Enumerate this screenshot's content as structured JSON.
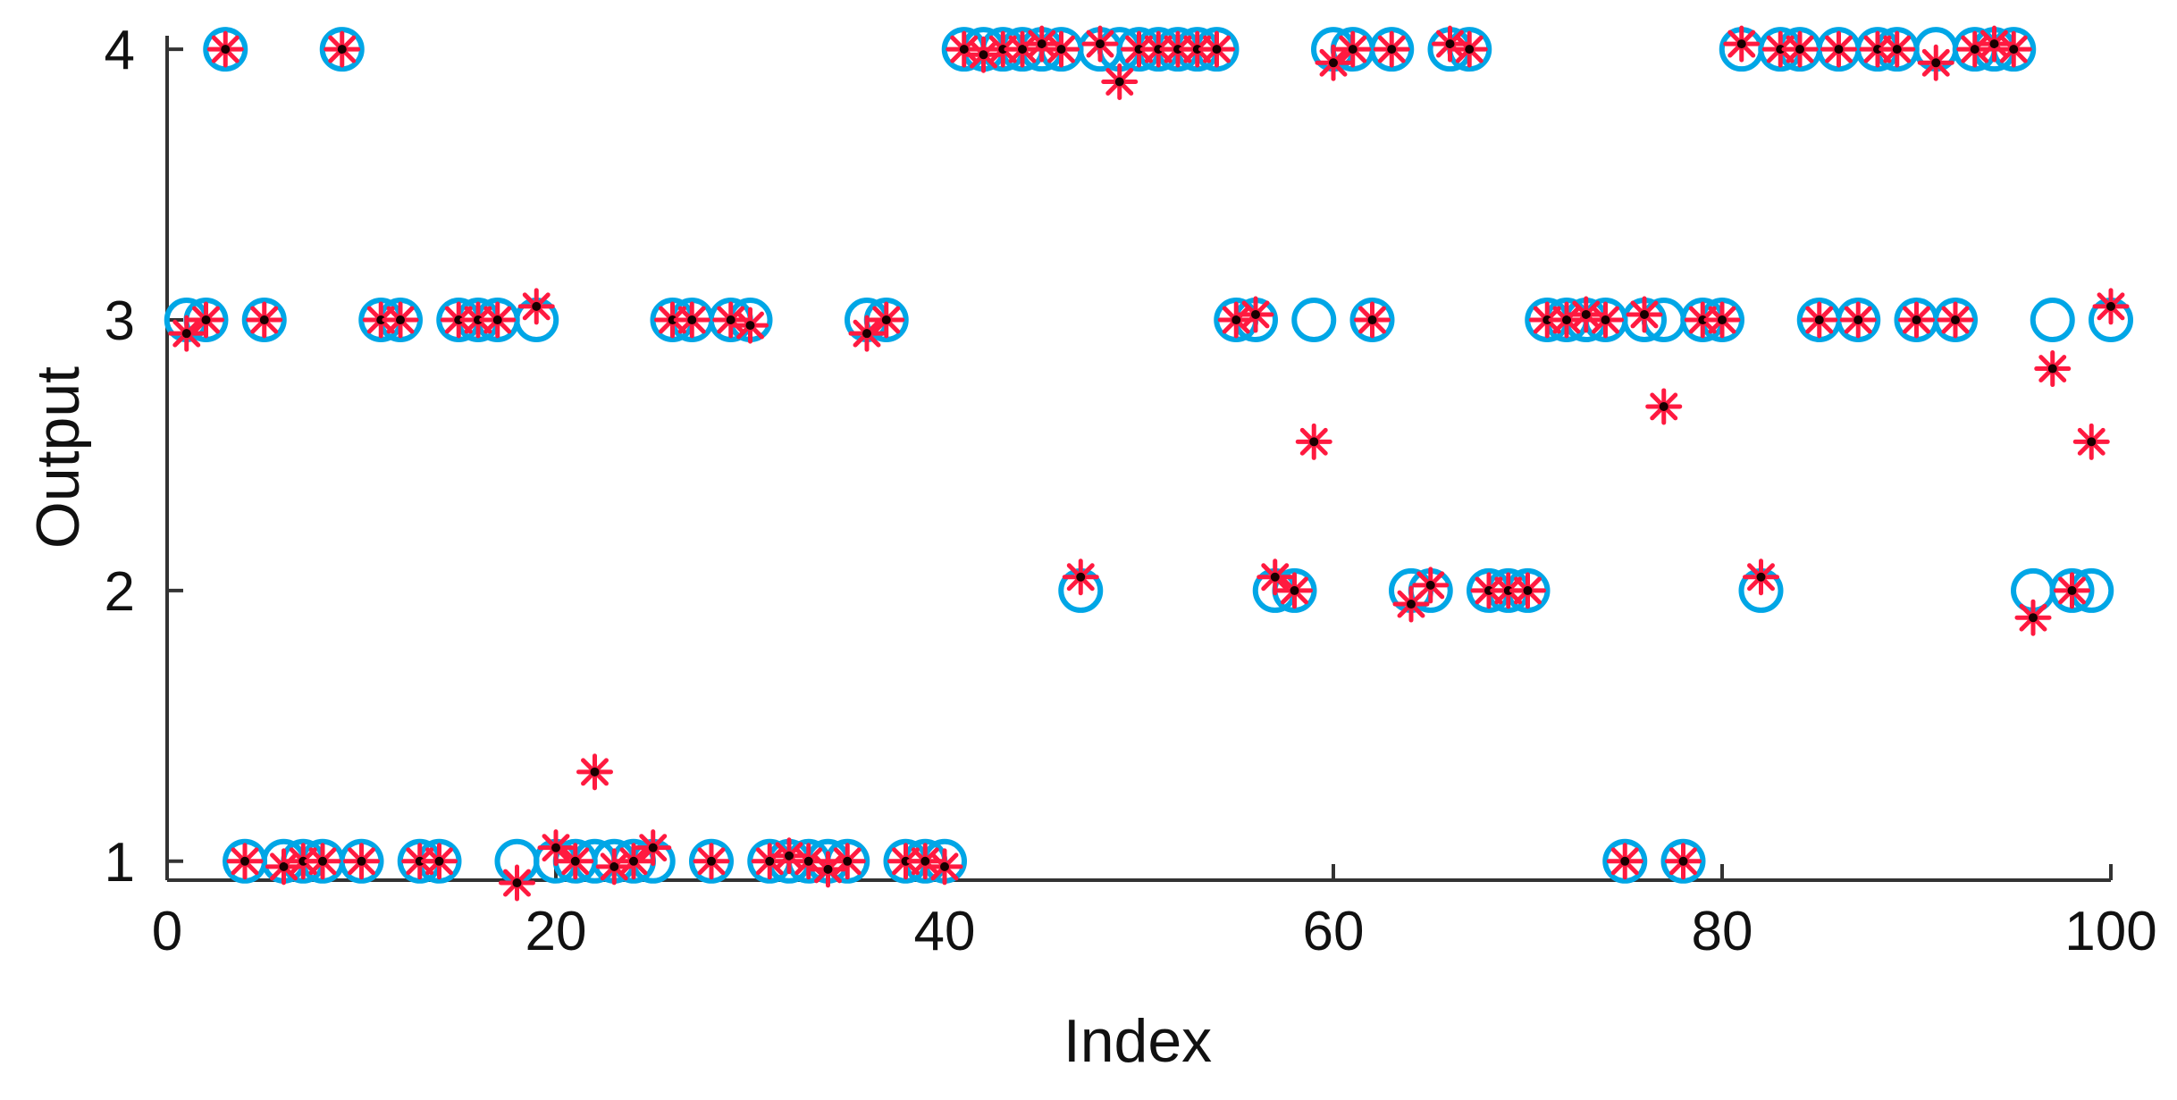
{
  "chart_data": {
    "type": "scatter",
    "xlabel": "Index",
    "ylabel": "Output",
    "xlim": [
      0,
      100
    ],
    "ylim": [
      0.93,
      4.05
    ],
    "xticks": [
      0,
      20,
      40,
      60,
      80,
      100
    ],
    "yticks": [
      1,
      2,
      3,
      4
    ],
    "xtick_labels": [
      "0",
      "20",
      "40",
      "60",
      "80",
      "100"
    ],
    "ytick_labels": [
      "1",
      "2",
      "3",
      "4"
    ],
    "grid": false,
    "legend": "none",
    "series": [
      {
        "marker": "circle",
        "color": "#00a6e6",
        "x": [
          1,
          2,
          3,
          4,
          5,
          6,
          7,
          8,
          9,
          10,
          11,
          12,
          13,
          14,
          15,
          16,
          17,
          18,
          19,
          20,
          21,
          22,
          23,
          24,
          25,
          26,
          27,
          28,
          29,
          30,
          31,
          32,
          33,
          34,
          35,
          36,
          37,
          38,
          39,
          40,
          41,
          42,
          43,
          44,
          45,
          46,
          47,
          48,
          49,
          50,
          51,
          52,
          53,
          54,
          55,
          56,
          57,
          58,
          59,
          60,
          61,
          62,
          63,
          64,
          65,
          66,
          67,
          68,
          69,
          70,
          71,
          72,
          73,
          74,
          75,
          76,
          77,
          78,
          79,
          80,
          81,
          82,
          83,
          84,
          85,
          86,
          87,
          88,
          89,
          90,
          91,
          92,
          93,
          94,
          95,
          96,
          97,
          98,
          99,
          100
        ],
        "y": [
          3,
          3,
          4,
          1,
          3,
          1,
          1,
          1,
          4,
          1,
          3,
          3,
          1,
          1,
          3,
          3,
          3,
          1,
          3,
          1,
          1,
          1,
          1,
          1,
          1,
          3,
          3,
          1,
          3,
          3,
          1,
          1,
          1,
          1,
          1,
          3,
          3,
          1,
          1,
          1,
          4,
          4,
          4,
          4,
          4,
          4,
          2,
          4,
          4,
          4,
          4,
          4,
          4,
          4,
          3,
          3,
          2,
          2,
          3,
          4,
          4,
          3,
          4,
          2,
          2,
          4,
          4,
          2,
          2,
          2,
          3,
          3,
          3,
          3,
          1,
          3,
          3,
          1,
          3,
          3,
          4,
          2,
          4,
          4,
          3,
          4,
          3,
          4,
          4,
          3,
          4,
          3,
          4,
          4,
          4,
          2,
          3,
          2,
          2,
          3
        ]
      },
      {
        "marker": "asterisk",
        "color": "#ff1a40",
        "x": [
          1,
          2,
          3,
          4,
          5,
          6,
          7,
          8,
          9,
          10,
          11,
          12,
          13,
          14,
          15,
          16,
          17,
          18,
          19,
          20,
          21,
          22,
          23,
          24,
          25,
          26,
          27,
          28,
          29,
          30,
          31,
          32,
          33,
          34,
          35,
          36,
          37,
          38,
          39,
          40,
          41,
          42,
          43,
          44,
          45,
          46,
          47,
          48,
          49,
          50,
          51,
          52,
          53,
          54,
          55,
          56,
          57,
          58,
          59,
          60,
          61,
          62,
          63,
          64,
          65,
          66,
          67,
          68,
          69,
          70,
          71,
          72,
          73,
          74,
          75,
          76,
          77,
          78,
          79,
          80,
          81,
          82,
          83,
          84,
          85,
          86,
          87,
          88,
          89,
          90,
          91,
          92,
          93,
          94,
          95,
          96,
          97,
          98,
          99,
          100
        ],
        "y": [
          2.95,
          3.0,
          4.0,
          1.0,
          3.0,
          0.98,
          1.0,
          1.0,
          4.0,
          1.0,
          3.0,
          3.0,
          1.0,
          1.0,
          3.0,
          3.0,
          3.0,
          0.92,
          3.05,
          1.05,
          1.0,
          1.33,
          0.98,
          1.0,
          1.05,
          3.0,
          3.0,
          1.0,
          3.0,
          2.98,
          1.0,
          1.02,
          1.0,
          0.97,
          1.0,
          2.95,
          3.0,
          1.0,
          1.0,
          0.98,
          4.0,
          3.98,
          4.0,
          4.0,
          4.02,
          4.0,
          2.05,
          4.02,
          3.88,
          4.0,
          4.0,
          4.0,
          4.0,
          4.0,
          3.0,
          3.02,
          2.05,
          2.0,
          2.55,
          3.95,
          4.0,
          3.0,
          4.0,
          1.95,
          2.02,
          4.02,
          4.0,
          2.0,
          2.0,
          2.0,
          3.0,
          3.0,
          3.02,
          3.0,
          1.0,
          3.02,
          2.68,
          1.0,
          3.0,
          3.0,
          4.02,
          2.05,
          4.0,
          4.0,
          3.0,
          4.0,
          3.0,
          4.0,
          4.0,
          3.0,
          3.95,
          3.0,
          4.0,
          4.02,
          4.0,
          1.9,
          2.82,
          2.0,
          2.55,
          3.05
        ]
      }
    ]
  }
}
